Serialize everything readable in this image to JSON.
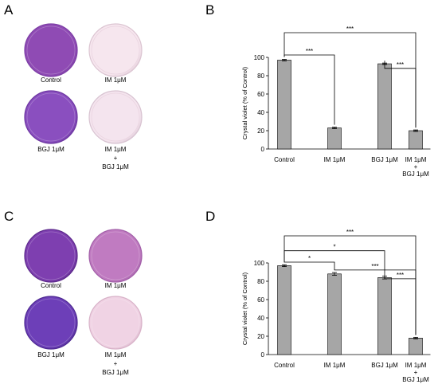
{
  "panels": {
    "A": "A",
    "B": "B",
    "C": "C",
    "D": "D"
  },
  "dish_panels": [
    {
      "letter_key": "A",
      "dishes": [
        {
          "label_lines": [
            "Control"
          ],
          "fill": "#8f4bb4",
          "rim": "#7d3ea6",
          "stain": "strong"
        },
        {
          "label_lines": [
            "IM 1μM"
          ],
          "fill": "#f6e6ee",
          "rim": "#dcc5d2",
          "stain": "none"
        },
        {
          "label_lines": [
            "BGJ 1μM"
          ],
          "fill": "#8a4fbf",
          "rim": "#6c35a1",
          "stain": "strong"
        },
        {
          "label_lines": [
            "IM 1μM",
            "+",
            "BGJ 1μM"
          ],
          "fill": "#f4e4ee",
          "rim": "#d8c3d1",
          "stain": "none"
        }
      ]
    },
    {
      "letter_key": "C",
      "dishes": [
        {
          "label_lines": [
            "Control"
          ],
          "fill": "#7e3fb0",
          "rim": "#5d2a8c",
          "stain": "strong"
        },
        {
          "label_lines": [
            "IM  1μM"
          ],
          "fill": "#c07bc1",
          "rim": "#a25fa8",
          "stain": "medium"
        },
        {
          "label_lines": [
            "BGJ 1μM"
          ],
          "fill": "#6d3fb8",
          "rim": "#4e2a92",
          "stain": "strong"
        },
        {
          "label_lines": [
            "IM  1μM",
            "+",
            "BGJ 1μM"
          ],
          "fill": "#f0d3e4",
          "rim": "#d8b2c8",
          "stain": "faint"
        }
      ]
    }
  ],
  "chart_data": [
    {
      "type": "bar",
      "panel": "B",
      "ylabel": "Crystal violet (% of Control)",
      "ylim": [
        0,
        100
      ],
      "yticks": [
        0,
        20,
        40,
        60,
        80,
        100
      ],
      "categories": [
        [
          "Control"
        ],
        [
          "IM 1μM"
        ],
        [
          "BGJ 1μM"
        ],
        [
          "IM 1μM",
          "+",
          "BGJ 1μM"
        ]
      ],
      "values": [
        97,
        23,
        93,
        20
      ],
      "errors": [
        0.8,
        0.8,
        0.8,
        0.8
      ],
      "bar_color": "#a6a6a6",
      "significance": [
        {
          "from": 0,
          "to": 1,
          "label": "***"
        },
        {
          "from": 0,
          "to": 3,
          "label": "***"
        },
        {
          "from": 2,
          "to": 3,
          "label": "***"
        }
      ]
    },
    {
      "type": "bar",
      "panel": "D",
      "ylabel": "Crystal violet (% of Control)",
      "ylim": [
        0,
        100
      ],
      "yticks": [
        0,
        20,
        40,
        60,
        80,
        100
      ],
      "categories": [
        [
          "Control"
        ],
        [
          "IM 1μM"
        ],
        [
          "BGJ 1μM"
        ],
        [
          "IM 1μM",
          "+",
          "BGJ 1μM"
        ]
      ],
      "values": [
        97,
        88,
        84,
        18
      ],
      "errors": [
        1.0,
        1.5,
        1.5,
        0.8
      ],
      "bar_color": "#a6a6a6",
      "significance": [
        {
          "from": 0,
          "to": 1,
          "label": "*"
        },
        {
          "from": 0,
          "to": 2,
          "label": "*"
        },
        {
          "from": 0,
          "to": 3,
          "label": "***"
        },
        {
          "from": 1,
          "to": 3,
          "label": "***"
        },
        {
          "from": 2,
          "to": 3,
          "label": "***"
        }
      ]
    }
  ]
}
